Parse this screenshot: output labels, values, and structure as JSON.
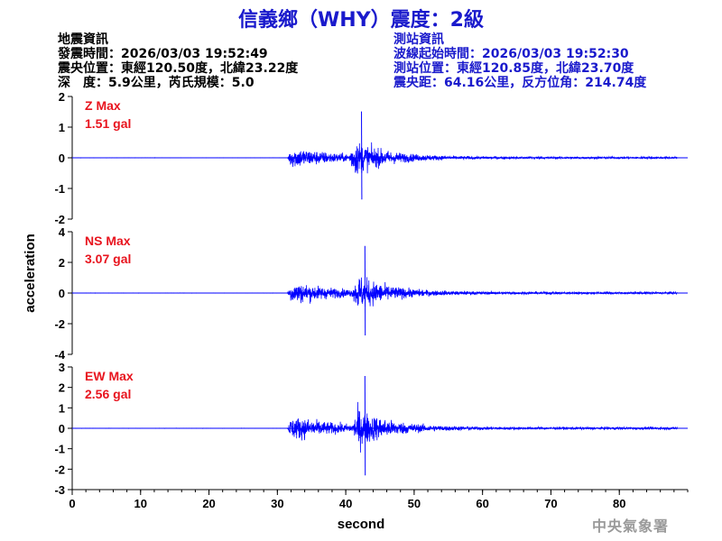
{
  "title": "信義鄉（WHY）震度：2級",
  "quake_info": {
    "heading": "地震資訊",
    "time": "發震時間：2026/03/03 19:52:49",
    "location": "震央位置：東經120.50度，北緯23.22度",
    "depth_mag": "深　度：5.9公里，芮氏規模：5.0"
  },
  "station_info": {
    "heading": "測站資訊",
    "wave_start": "波線起始時間：2026/03/03 19:52:30",
    "location": "測站位置：東經120.85度，北緯23.70度",
    "distance": "震央距：64.16公里，反方位角：214.74度"
  },
  "footer": "中央氣象署",
  "colors": {
    "trace": "#0000ff",
    "max_label": "#e8141e",
    "title": "#1a1acc"
  },
  "chart_data": [
    {
      "type": "line",
      "component": "Z",
      "max_label": "Z Max",
      "max_value": "1.51 gal",
      "peak": 1.51,
      "ylim": [
        -2,
        2
      ],
      "yticks": [
        -2,
        -1,
        0,
        1,
        2
      ],
      "xlim": [
        0,
        90
      ],
      "xticks": [
        0,
        10,
        20,
        30,
        40,
        50,
        60,
        70,
        80
      ],
      "signal_onset": 31.5,
      "main_onset": 40.5
    },
    {
      "type": "line",
      "component": "NS",
      "max_label": "NS Max",
      "max_value": "3.07 gal",
      "peak": 3.07,
      "ylim": [
        -4,
        4
      ],
      "yticks": [
        -4,
        -2,
        0,
        2,
        4
      ],
      "xlim": [
        0,
        90
      ],
      "xticks": [
        0,
        10,
        20,
        30,
        40,
        50,
        60,
        70,
        80
      ],
      "signal_onset": 31.5,
      "main_onset": 41.0
    },
    {
      "type": "line",
      "component": "EW",
      "max_label": "EW Max",
      "max_value": "2.56 gal",
      "peak": 2.56,
      "ylim": [
        -3,
        3
      ],
      "yticks": [
        -3,
        -2,
        -1,
        0,
        1,
        2,
        3
      ],
      "xlim": [
        0,
        90
      ],
      "xticks": [
        0,
        10,
        20,
        30,
        40,
        50,
        60,
        70,
        80
      ],
      "signal_onset": 31.5,
      "main_onset": 41.0
    }
  ],
  "axes": {
    "xlabel": "second",
    "ylabel": "acceleration"
  }
}
